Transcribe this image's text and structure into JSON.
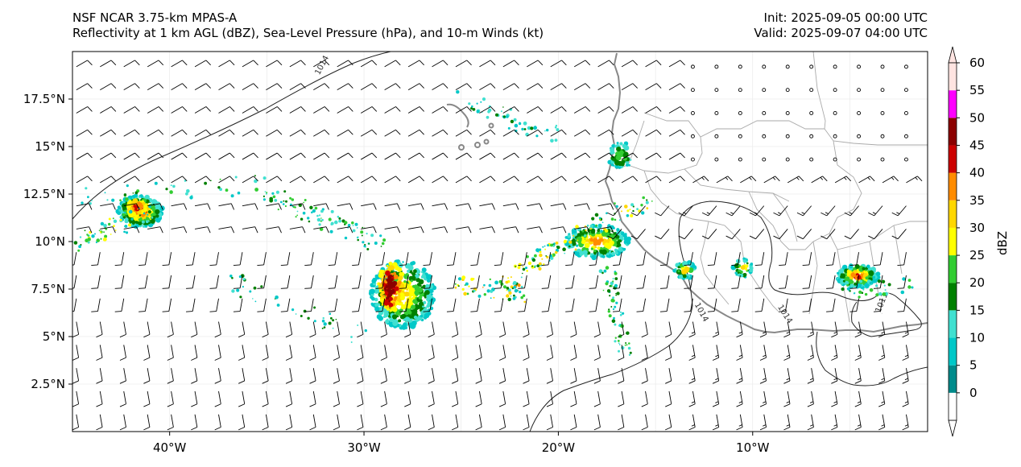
{
  "header": {
    "model": "NSF NCAR 3.75-km MPAS-A",
    "fields": "Reflectivity at 1 km AGL (dBZ), Sea-Level Pressure (hPa), and 10-m Winds (kt)",
    "init": "Init: 2025-09-05 00:00 UTC",
    "valid": "Valid: 2025-09-07 04:00 UTC"
  },
  "map": {
    "lon_range": [
      -45,
      -1
    ],
    "lat_range": [
      0,
      20
    ],
    "lat_ticks": [
      {
        "value": 17.5,
        "label": "17.5°N"
      },
      {
        "value": 15,
        "label": "15°N"
      },
      {
        "value": 12.5,
        "label": "12.5°N"
      },
      {
        "value": 10,
        "label": "10°N"
      },
      {
        "value": 7.5,
        "label": "7.5°N"
      },
      {
        "value": 5,
        "label": "5°N"
      },
      {
        "value": 2.5,
        "label": "2.5°N"
      }
    ],
    "lon_ticks": [
      {
        "value": -40,
        "label": "40°W"
      },
      {
        "value": -30,
        "label": "30°W"
      },
      {
        "value": -20,
        "label": "20°W"
      },
      {
        "value": -10,
        "label": "10°W"
      }
    ],
    "isobar_labels": [
      {
        "text": "1014",
        "lon": -32.2,
        "lat": 19.3,
        "rot": -62
      },
      {
        "text": "1014",
        "lon": -12.6,
        "lat": 6.3,
        "rot": 62
      },
      {
        "text": "1014",
        "lon": -8.3,
        "lat": 6.2,
        "rot": 58
      },
      {
        "text": "1011",
        "lon": -3.4,
        "lat": 6.8,
        "rot": -68
      }
    ],
    "storms": [
      {
        "name": "western-cluster",
        "lon": -41.5,
        "lat": 11.6,
        "max_dbz": 45
      },
      {
        "name": "central-cluster",
        "lon": -28.4,
        "lat": 7.5,
        "max_dbz": 50
      },
      {
        "name": "coastal-band",
        "lon": -17.5,
        "lat": 10.5,
        "max_dbz": 40
      },
      {
        "name": "eastern-cluster",
        "lon": -4.6,
        "lat": 8.2,
        "max_dbz": 40
      }
    ]
  },
  "colorbar": {
    "label": "dBZ",
    "ticks": [
      "0",
      "5",
      "10",
      "15",
      "20",
      "25",
      "30",
      "35",
      "40",
      "45",
      "50",
      "55",
      "60"
    ],
    "colors": [
      "#008b8b",
      "#00c8c8",
      "#40e0d0",
      "#008000",
      "#32cd32",
      "#ffff00",
      "#ffd700",
      "#ff8c00",
      "#cc0000",
      "#8b0000",
      "#ff00ff",
      "#ffe4e1"
    ]
  }
}
